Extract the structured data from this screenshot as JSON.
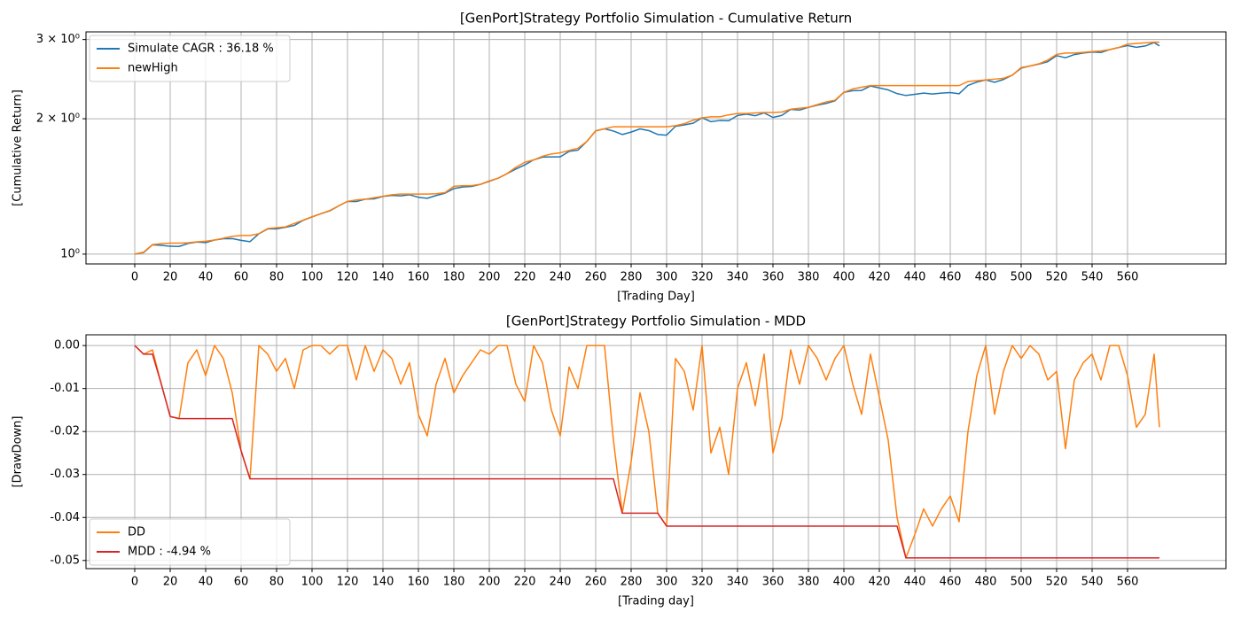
{
  "chart_data": [
    {
      "type": "line",
      "title": "[GenPort]Strategy Portfolio Simulation - Cumulative Return",
      "x_label": "[Trading Day]",
      "y_label": "[Cumulative Return]",
      "yscale": "log",
      "grid": true,
      "legend": "upper left",
      "xlim": [
        -27.5,
        615.5
      ],
      "xticks": [
        0,
        20,
        40,
        60,
        80,
        100,
        120,
        140,
        160,
        180,
        200,
        220,
        240,
        260,
        280,
        300,
        320,
        340,
        360,
        380,
        400,
        420,
        440,
        460,
        480,
        500,
        520,
        540,
        560
      ],
      "ylim": [
        0.951,
        3.12
      ],
      "yticks": [
        {
          "value": 1,
          "label": "10⁰"
        },
        {
          "value": 2,
          "label": "2 × 10⁰"
        },
        {
          "value": 3,
          "label": "3 × 10⁰"
        }
      ],
      "x": [
        0,
        5,
        10,
        15,
        20,
        25,
        30,
        35,
        40,
        45,
        50,
        55,
        60,
        65,
        70,
        75,
        80,
        85,
        90,
        95,
        100,
        105,
        110,
        115,
        120,
        125,
        130,
        135,
        140,
        145,
        150,
        155,
        160,
        165,
        170,
        175,
        180,
        185,
        190,
        195,
        200,
        205,
        210,
        215,
        220,
        225,
        230,
        235,
        240,
        245,
        250,
        255,
        260,
        265,
        270,
        275,
        280,
        285,
        290,
        295,
        300,
        305,
        310,
        315,
        320,
        325,
        330,
        335,
        340,
        345,
        350,
        355,
        360,
        365,
        370,
        375,
        380,
        385,
        390,
        395,
        400,
        405,
        410,
        415,
        420,
        425,
        430,
        435,
        440,
        445,
        450,
        455,
        460,
        465,
        470,
        475,
        480,
        485,
        490,
        495,
        500,
        505,
        510,
        515,
        520,
        525,
        530,
        535,
        540,
        545,
        550,
        555,
        560,
        565,
        570,
        575,
        578
      ],
      "series": [
        {
          "name": "Simulate CAGR : 36.18 %",
          "color": "#1f77b4",
          "values": [
            1.0,
            1.008,
            1.049,
            1.046,
            1.041,
            1.04,
            1.056,
            1.064,
            1.061,
            1.075,
            1.082,
            1.083,
            1.073,
            1.066,
            1.11,
            1.138,
            1.138,
            1.147,
            1.158,
            1.189,
            1.21,
            1.23,
            1.248,
            1.28,
            1.31,
            1.309,
            1.325,
            1.327,
            1.344,
            1.351,
            1.348,
            1.355,
            1.338,
            1.331,
            1.35,
            1.366,
            1.399,
            1.41,
            1.414,
            1.429,
            1.452,
            1.475,
            1.51,
            1.546,
            1.579,
            1.62,
            1.643,
            1.645,
            1.645,
            1.692,
            1.703,
            1.78,
            1.88,
            1.9,
            1.878,
            1.845,
            1.868,
            1.899,
            1.882,
            1.845,
            1.839,
            1.924,
            1.938,
            1.955,
            2.01,
            1.97,
            1.982,
            1.979,
            2.034,
            2.047,
            2.031,
            2.061,
            2.013,
            2.035,
            2.098,
            2.091,
            2.12,
            2.144,
            2.163,
            2.193,
            2.29,
            2.309,
            2.312,
            2.365,
            2.342,
            2.318,
            2.275,
            2.253,
            2.266,
            2.28,
            2.27,
            2.28,
            2.287,
            2.273,
            2.372,
            2.413,
            2.44,
            2.411,
            2.445,
            2.5,
            2.592,
            2.62,
            2.645,
            2.678,
            2.763,
            2.733,
            2.778,
            2.799,
            2.814,
            2.807,
            2.85,
            2.88,
            2.909,
            2.884,
            2.903,
            2.954,
            2.904
          ]
        },
        {
          "name": "newHigh",
          "color": "#ff7f0e",
          "values": [
            1.0,
            1.01,
            1.05,
            1.055,
            1.058,
            1.058,
            1.06,
            1.065,
            1.068,
            1.075,
            1.085,
            1.095,
            1.1,
            1.1,
            1.11,
            1.14,
            1.145,
            1.15,
            1.17,
            1.19,
            1.21,
            1.23,
            1.25,
            1.28,
            1.31,
            1.32,
            1.325,
            1.335,
            1.345,
            1.355,
            1.36,
            1.36,
            1.36,
            1.36,
            1.362,
            1.37,
            1.415,
            1.42,
            1.42,
            1.43,
            1.455,
            1.475,
            1.51,
            1.56,
            1.6,
            1.62,
            1.65,
            1.67,
            1.68,
            1.7,
            1.72,
            1.78,
            1.88,
            1.9,
            1.92,
            1.92,
            1.92,
            1.92,
            1.92,
            1.92,
            1.92,
            1.93,
            1.95,
            1.985,
            2.01,
            2.02,
            2.02,
            2.04,
            2.055,
            2.055,
            2.06,
            2.065,
            2.065,
            2.07,
            2.1,
            2.11,
            2.12,
            2.15,
            2.18,
            2.2,
            2.29,
            2.33,
            2.35,
            2.37,
            2.37,
            2.37,
            2.37,
            2.37,
            2.37,
            2.37,
            2.37,
            2.37,
            2.37,
            2.37,
            2.42,
            2.43,
            2.44,
            2.45,
            2.46,
            2.5,
            2.6,
            2.62,
            2.65,
            2.7,
            2.78,
            2.8,
            2.8,
            2.81,
            2.82,
            2.83,
            2.85,
            2.88,
            2.93,
            2.94,
            2.95,
            2.96,
            2.96
          ]
        }
      ]
    },
    {
      "type": "line",
      "title": "[GenPort]Strategy Portfolio Simulation - MDD",
      "x_label": "[Trading day]",
      "y_label": "[DrawDown]",
      "grid": true,
      "legend": "lower left",
      "xlim": [
        -27.5,
        615.5
      ],
      "xticks": [
        0,
        20,
        40,
        60,
        80,
        100,
        120,
        140,
        160,
        180,
        200,
        220,
        240,
        260,
        280,
        300,
        320,
        340,
        360,
        380,
        400,
        420,
        440,
        460,
        480,
        500,
        520,
        540,
        560
      ],
      "ylim": [
        -0.0519,
        0.0025
      ],
      "yticks": [
        {
          "value": 0,
          "label": "0.00"
        },
        {
          "value": -0.01,
          "label": "-0.01"
        },
        {
          "value": -0.02,
          "label": "-0.02"
        },
        {
          "value": -0.03,
          "label": "-0.03"
        },
        {
          "value": -0.04,
          "label": "-0.04"
        },
        {
          "value": -0.05,
          "label": "-0.05"
        }
      ],
      "x": [
        0,
        5,
        10,
        15,
        20,
        25,
        30,
        35,
        40,
        45,
        50,
        55,
        60,
        65,
        70,
        75,
        80,
        85,
        90,
        95,
        100,
        105,
        110,
        115,
        120,
        125,
        130,
        135,
        140,
        145,
        150,
        155,
        160,
        165,
        170,
        175,
        180,
        185,
        190,
        195,
        200,
        205,
        210,
        215,
        220,
        225,
        230,
        235,
        240,
        245,
        250,
        255,
        260,
        265,
        270,
        275,
        280,
        285,
        290,
        295,
        300,
        305,
        310,
        315,
        320,
        325,
        330,
        335,
        340,
        345,
        350,
        355,
        360,
        365,
        370,
        375,
        380,
        385,
        390,
        395,
        400,
        405,
        410,
        415,
        420,
        425,
        430,
        435,
        440,
        445,
        450,
        455,
        460,
        465,
        470,
        475,
        480,
        485,
        490,
        495,
        500,
        505,
        510,
        515,
        520,
        525,
        530,
        535,
        540,
        545,
        550,
        555,
        560,
        565,
        570,
        575,
        578
      ],
      "series": [
        {
          "name": "DD",
          "color": "#ff7f0e",
          "values": [
            0,
            -0.002,
            -0.001,
            -0.009,
            -0.0165,
            -0.017,
            -0.004,
            -0.001,
            -0.007,
            0,
            -0.003,
            -0.011,
            -0.0245,
            -0.031,
            0,
            -0.002,
            -0.006,
            -0.003,
            -0.01,
            -0.001,
            0,
            0,
            -0.002,
            0,
            0,
            -0.008,
            0,
            -0.006,
            -0.001,
            -0.003,
            -0.009,
            -0.004,
            -0.016,
            -0.021,
            -0.009,
            -0.003,
            -0.011,
            -0.007,
            -0.004,
            -0.001,
            -0.002,
            0,
            0,
            -0.009,
            -0.013,
            0,
            -0.004,
            -0.015,
            -0.021,
            -0.005,
            -0.01,
            0,
            0,
            0,
            -0.022,
            -0.039,
            -0.027,
            -0.011,
            -0.02,
            -0.039,
            -0.042,
            -0.003,
            -0.006,
            -0.015,
            0,
            -0.025,
            -0.019,
            -0.03,
            -0.01,
            -0.004,
            -0.014,
            -0.002,
            -0.025,
            -0.017,
            -0.001,
            -0.009,
            0,
            -0.003,
            -0.008,
            -0.003,
            0,
            -0.009,
            -0.016,
            -0.002,
            -0.012,
            -0.022,
            -0.04,
            -0.0494,
            -0.044,
            -0.038,
            -0.042,
            -0.038,
            -0.035,
            -0.041,
            -0.02,
            -0.007,
            0,
            -0.016,
            -0.006,
            0,
            -0.003,
            0,
            -0.002,
            -0.008,
            -0.006,
            -0.024,
            -0.008,
            -0.004,
            -0.002,
            -0.008,
            0,
            0,
            -0.007,
            -0.019,
            -0.016,
            -0.002,
            -0.019
          ]
        },
        {
          "name": "MDD : -4.94 %",
          "color": "#d62728",
          "values": [
            0,
            -0.002,
            -0.002,
            -0.009,
            -0.0165,
            -0.017,
            -0.017,
            -0.017,
            -0.017,
            -0.017,
            -0.017,
            -0.017,
            -0.0245,
            -0.031,
            -0.031,
            -0.031,
            -0.031,
            -0.031,
            -0.031,
            -0.031,
            -0.031,
            -0.031,
            -0.031,
            -0.031,
            -0.031,
            -0.031,
            -0.031,
            -0.031,
            -0.031,
            -0.031,
            -0.031,
            -0.031,
            -0.031,
            -0.031,
            -0.031,
            -0.031,
            -0.031,
            -0.031,
            -0.031,
            -0.031,
            -0.031,
            -0.031,
            -0.031,
            -0.031,
            -0.031,
            -0.031,
            -0.031,
            -0.031,
            -0.031,
            -0.031,
            -0.031,
            -0.031,
            -0.031,
            -0.031,
            -0.031,
            -0.039,
            -0.039,
            -0.039,
            -0.039,
            -0.039,
            -0.042,
            -0.042,
            -0.042,
            -0.042,
            -0.042,
            -0.042,
            -0.042,
            -0.042,
            -0.042,
            -0.042,
            -0.042,
            -0.042,
            -0.042,
            -0.042,
            -0.042,
            -0.042,
            -0.042,
            -0.042,
            -0.042,
            -0.042,
            -0.042,
            -0.042,
            -0.042,
            -0.042,
            -0.042,
            -0.042,
            -0.042,
            -0.0494,
            -0.0494,
            -0.0494,
            -0.0494,
            -0.0494,
            -0.0494,
            -0.0494,
            -0.0494,
            -0.0494,
            -0.0494,
            -0.0494,
            -0.0494,
            -0.0494,
            -0.0494,
            -0.0494,
            -0.0494,
            -0.0494,
            -0.0494,
            -0.0494,
            -0.0494,
            -0.0494,
            -0.0494,
            -0.0494,
            -0.0494,
            -0.0494,
            -0.0494,
            -0.0494,
            -0.0494,
            -0.0494,
            -0.0494
          ]
        }
      ]
    }
  ]
}
